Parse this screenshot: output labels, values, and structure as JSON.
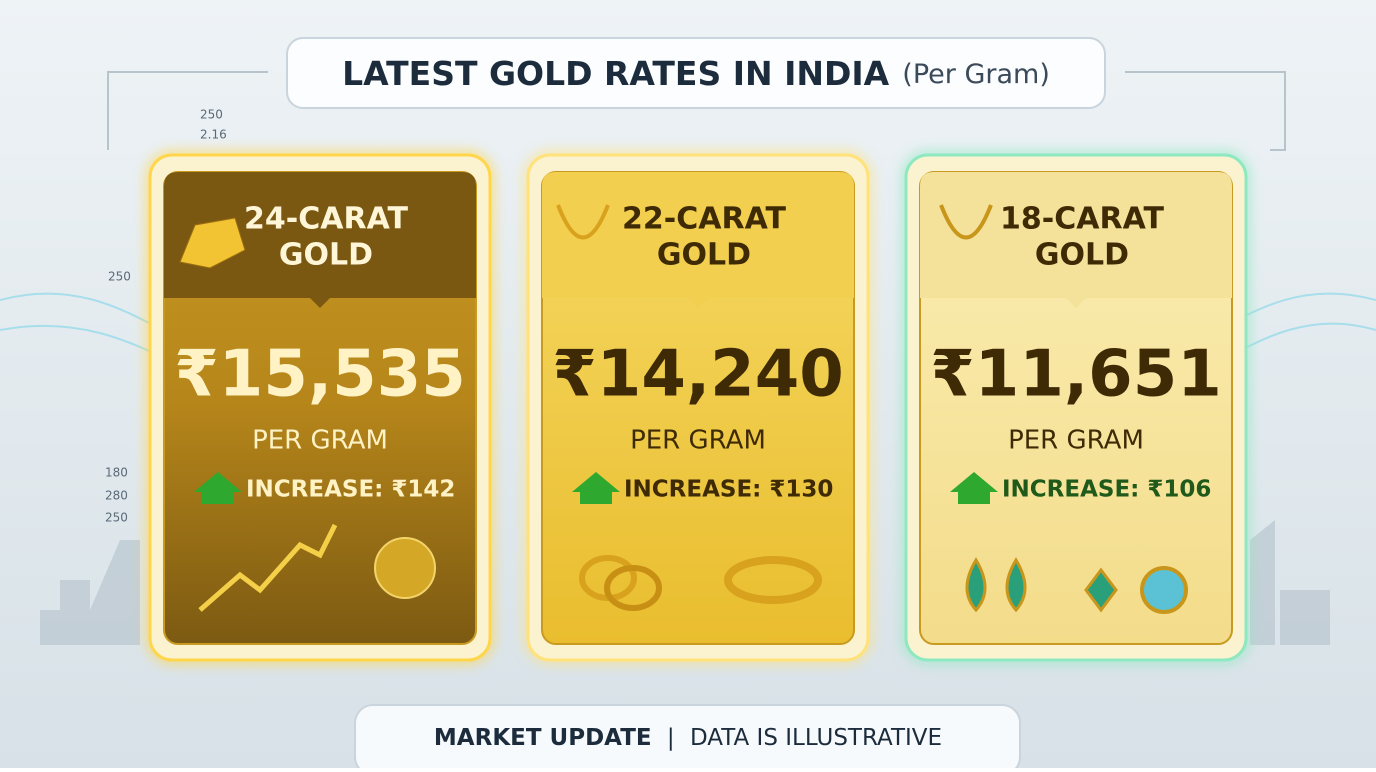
{
  "header": {
    "title": "LATEST GOLD RATES IN INDIA",
    "subtitle": "(Per Gram)"
  },
  "side_numbers_left": [
    "250",
    "2.16",
    "250",
    "180",
    "280",
    "250"
  ],
  "cards": [
    {
      "title_line1": "24-CARAT",
      "title_line2": "GOLD",
      "price": "₹15,535",
      "unit": "PER GRAM",
      "change": "INCREASE: ₹142"
    },
    {
      "title_line1": "22-CARAT",
      "title_line2": "GOLD",
      "price": "₹14,240",
      "unit": "PER GRAM",
      "change": "INCREASE: ₹130"
    },
    {
      "title_line1": "18-CARAT",
      "title_line2": "GOLD",
      "price": "₹11,651",
      "unit": "PER GRAM",
      "change": "INCREASE: ₹106"
    }
  ],
  "footer": {
    "left": "MARKET UPDATE",
    "separator": "|",
    "right": "DATA IS ILLUSTRATIVE"
  }
}
